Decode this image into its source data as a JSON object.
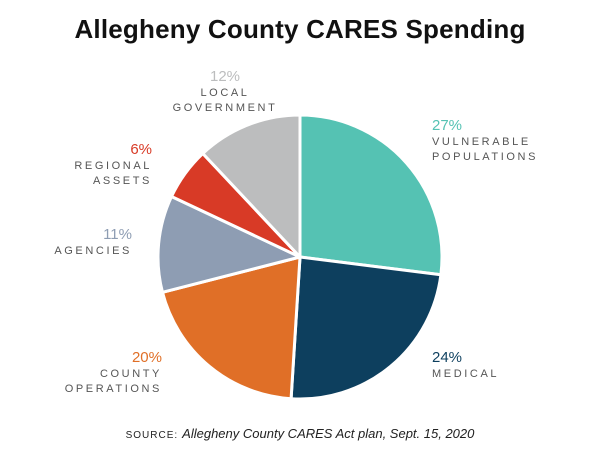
{
  "chart_data": {
    "type": "pie",
    "title": "Allegheny County CARES Spending",
    "slices": [
      {
        "pct_label": "27%",
        "category": [
          "VULNERABLE",
          "POPULATIONS"
        ],
        "value": 27,
        "color": "#55c2b3"
      },
      {
        "pct_label": "24%",
        "category": [
          "MEDICAL"
        ],
        "value": 24,
        "color": "#0d3f5e"
      },
      {
        "pct_label": "20%",
        "category": [
          "COUNTY",
          "OPERATIONS"
        ],
        "value": 20,
        "color": "#e06f27"
      },
      {
        "pct_label": "11%",
        "category": [
          "AGENCIES"
        ],
        "value": 11,
        "color": "#8e9db3"
      },
      {
        "pct_label": "6%",
        "category": [
          "REGIONAL",
          "ASSETS"
        ],
        "value": 6,
        "color": "#d83a26"
      },
      {
        "pct_label": "12%",
        "category": [
          "LOCAL",
          "GOVERNMENT"
        ],
        "value": 12,
        "color": "#bcbdbe"
      }
    ],
    "start_angle_deg": 0,
    "direction": "clockwise"
  },
  "source": {
    "key": "SOURCE:",
    "text": "Allegheny County CARES Act plan, Sept. 15, 2020"
  }
}
